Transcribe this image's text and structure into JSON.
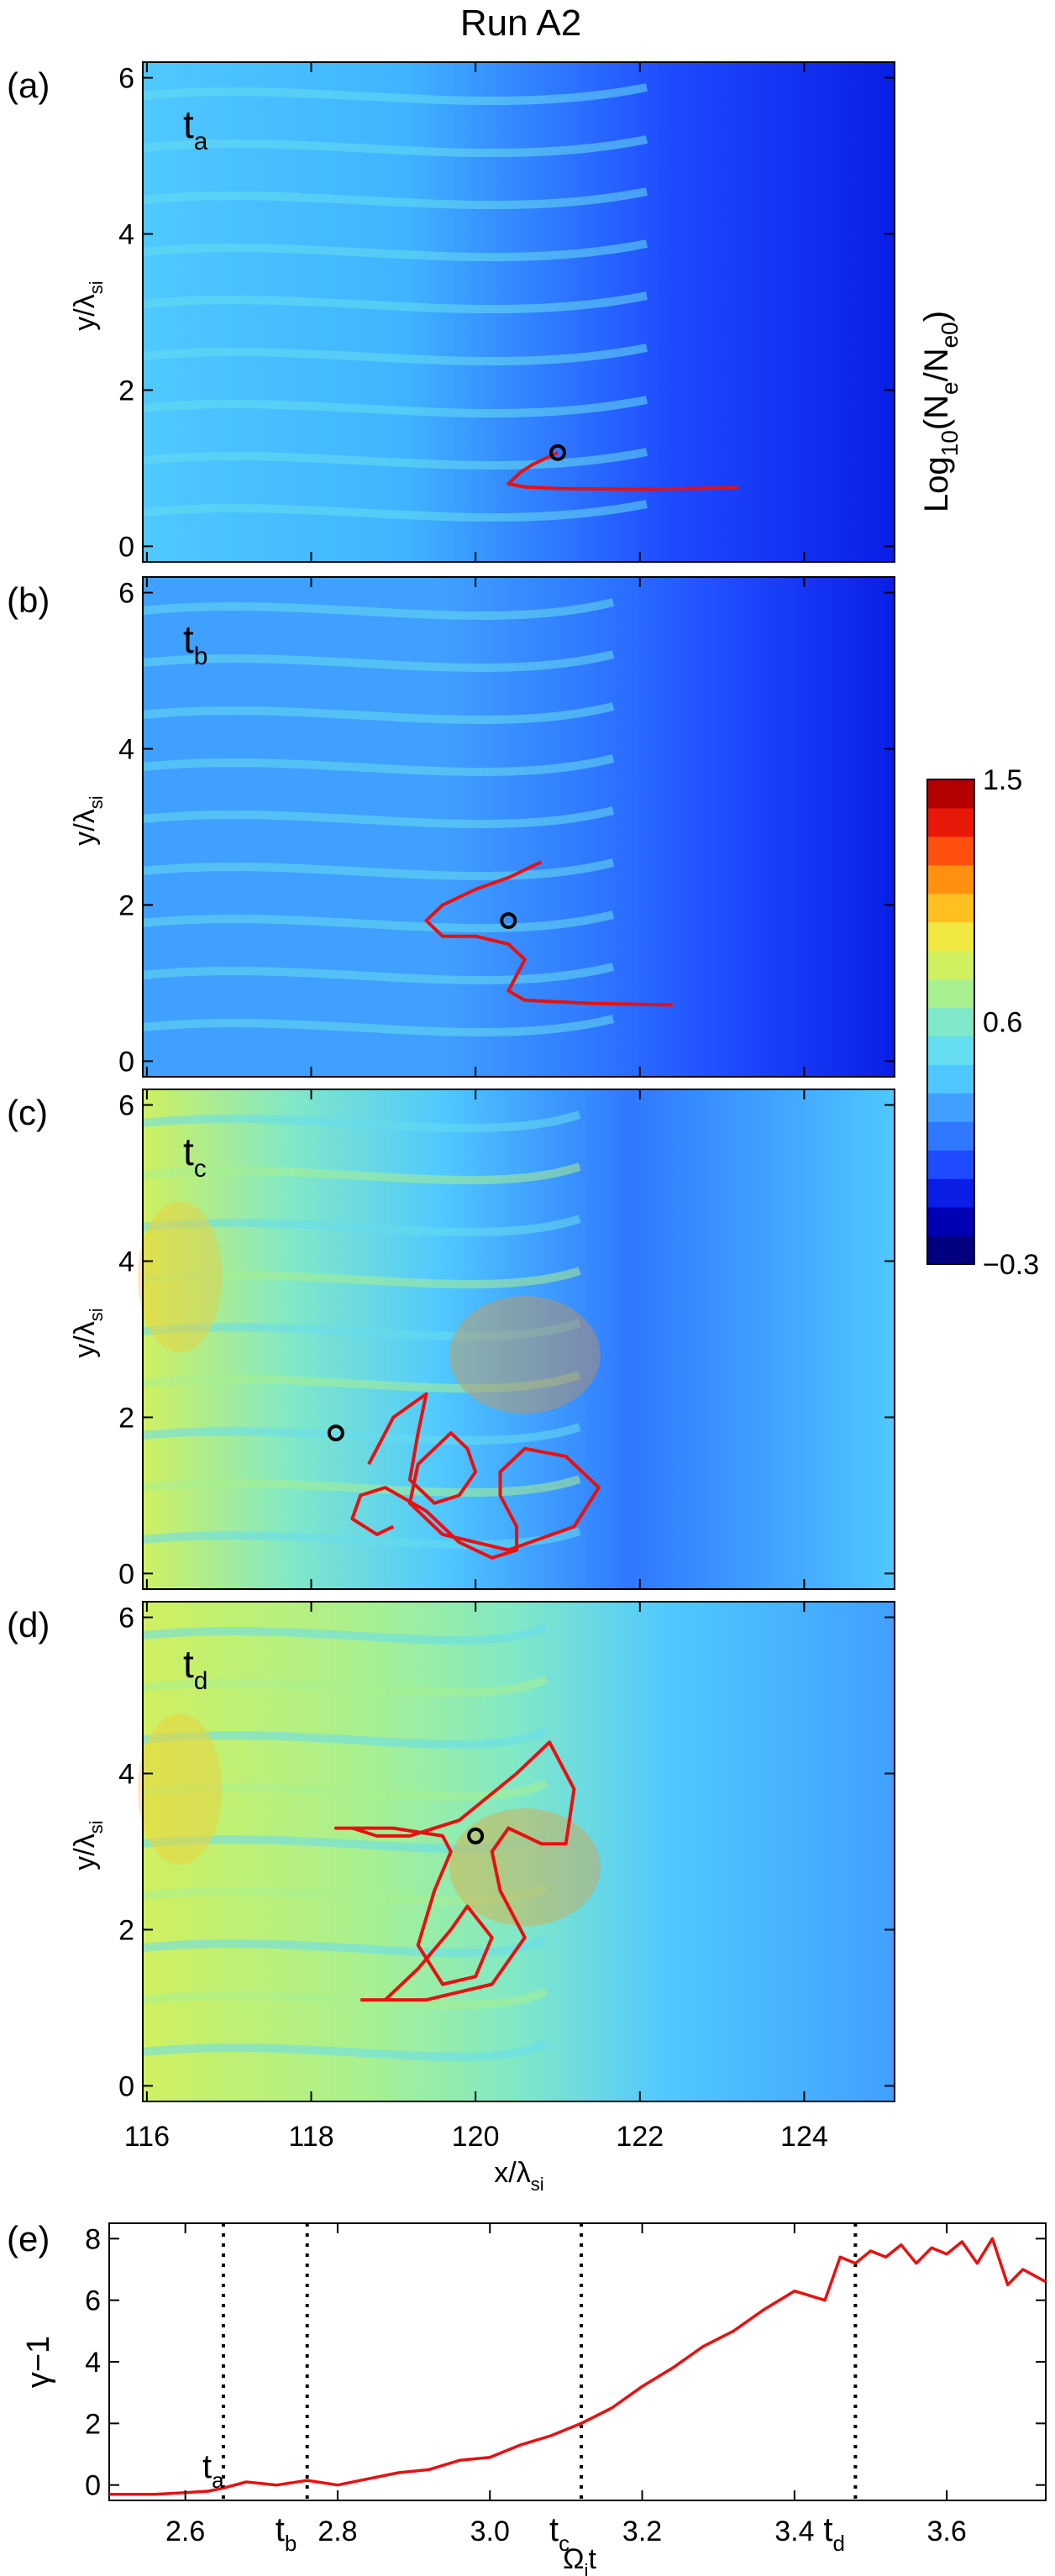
{
  "title": "Run A2",
  "colormap": {
    "label": "Log10(Ne/Ne0)",
    "label_parts": {
      "pre": "Log",
      "sub1": "10",
      "mid": "(N",
      "sub2": "e",
      "mid2": "/N",
      "sub3": "e0",
      "post": ")"
    },
    "min": -0.3,
    "max": 1.5,
    "tick_labels": [
      "1.5",
      "0.6",
      "−0.3"
    ],
    "tick_values": [
      1.5,
      0.6,
      -0.3
    ],
    "colors": [
      "#000080",
      "#0000b4",
      "#0a1ee6",
      "#1e4bff",
      "#2f78ff",
      "#40a0ff",
      "#50c8ff",
      "#66ddf0",
      "#80e8c8",
      "#a8f090",
      "#d0f060",
      "#f0e840",
      "#ffc020",
      "#ff9010",
      "#ff5010",
      "#e81808",
      "#b40000"
    ]
  },
  "panels": [
    {
      "id": "a",
      "letter": "(a)",
      "time": "t",
      "time_sub": "a",
      "ylabel": "y/λ",
      "ylabel_sub": "si",
      "yticks": [
        "0",
        "2",
        "4",
        "6"
      ]
    },
    {
      "id": "b",
      "letter": "(b)",
      "time": "t",
      "time_sub": "b",
      "ylabel": "y/λ",
      "ylabel_sub": "si",
      "yticks": [
        "0",
        "2",
        "4",
        "6"
      ]
    },
    {
      "id": "c",
      "letter": "(c)",
      "time": "t",
      "time_sub": "c",
      "ylabel": "y/λ",
      "ylabel_sub": "si",
      "yticks": [
        "0",
        "2",
        "4",
        "6"
      ]
    },
    {
      "id": "d",
      "letter": "(d)",
      "time": "t",
      "time_sub": "d",
      "ylabel": "y/λ",
      "ylabel_sub": "si",
      "yticks": [
        "0",
        "2",
        "4",
        "6"
      ]
    }
  ],
  "map_axes": {
    "xlabel": "x/λ",
    "xlabel_sub": "si",
    "xticks": [
      "116",
      "118",
      "120",
      "122",
      "124"
    ],
    "xlim": [
      115.95,
      125.1
    ],
    "ylim": [
      -0.2,
      6.2
    ]
  },
  "chart_data": [
    {
      "type": "heatmap",
      "panel": "a",
      "description_values": "electron density map",
      "xlim": [
        115.95,
        125.1
      ],
      "ylim": [
        -0.2,
        6.2
      ],
      "trajectory": {
        "x": [
          123.2,
          122.0,
          121.0,
          120.6,
          120.4,
          120.55,
          120.7,
          120.9,
          121.0
        ],
        "y": [
          0.75,
          0.73,
          0.74,
          0.76,
          0.8,
          0.95,
          1.05,
          1.15,
          1.2
        ]
      },
      "marker": {
        "x": 121.0,
        "y": 1.2
      }
    },
    {
      "type": "heatmap",
      "panel": "b",
      "xlim": [
        115.95,
        125.1
      ],
      "ylim": [
        -0.2,
        6.2
      ],
      "trajectory": {
        "x": [
          122.4,
          121.4,
          120.6,
          120.4,
          120.5,
          120.6,
          120.4,
          120.0,
          119.6,
          119.4,
          119.6,
          120.0,
          120.4,
          120.8
        ],
        "y": [
          0.72,
          0.74,
          0.78,
          0.9,
          1.1,
          1.3,
          1.5,
          1.6,
          1.6,
          1.8,
          2.0,
          2.2,
          2.35,
          2.55
        ]
      },
      "marker": {
        "x": 120.4,
        "y": 1.8
      }
    },
    {
      "type": "heatmap",
      "panel": "c",
      "xlim": [
        115.95,
        125.1
      ],
      "ylim": [
        -0.2,
        6.2
      ],
      "trajectory": {
        "x": [
          118.7,
          119.0,
          119.4,
          119.3,
          119.2,
          119.5,
          119.8,
          120.0,
          119.9,
          119.7,
          119.3,
          119.2,
          119.6,
          120.4,
          121.2,
          121.5,
          121.1,
          120.6,
          120.3,
          120.3,
          120.5,
          120.5,
          120.2,
          119.8,
          119.4,
          118.9,
          118.6,
          118.5,
          118.8,
          119.0
        ],
        "y": [
          1.4,
          2.0,
          2.3,
          1.8,
          1.2,
          0.9,
          1.0,
          1.3,
          1.6,
          1.8,
          1.4,
          0.9,
          0.5,
          0.3,
          0.6,
          1.1,
          1.5,
          1.6,
          1.3,
          1.0,
          0.6,
          0.3,
          0.2,
          0.4,
          0.8,
          1.1,
          1.0,
          0.7,
          0.5,
          0.6
        ]
      },
      "marker": {
        "x": 118.3,
        "y": 1.8
      }
    },
    {
      "type": "heatmap",
      "panel": "d",
      "xlim": [
        115.95,
        125.1
      ],
      "ylim": [
        -0.2,
        6.2
      ],
      "trajectory": {
        "x": [
          118.6,
          119.4,
          120.2,
          120.6,
          120.3,
          120.2,
          120.4,
          120.8,
          121.1,
          121.2,
          120.9,
          120.5,
          119.8,
          119.2,
          118.8,
          118.5,
          118.3,
          119.0,
          119.6,
          119.7,
          119.5,
          119.3,
          119.6,
          120.0,
          120.2,
          119.9,
          119.7,
          119.3,
          118.9,
          118.6
        ],
        "y": [
          1.1,
          1.1,
          1.3,
          1.9,
          2.5,
          3.0,
          3.3,
          3.1,
          3.1,
          3.8,
          4.4,
          4.0,
          3.4,
          3.2,
          3.2,
          3.3,
          3.3,
          3.3,
          3.2,
          3.0,
          2.5,
          1.8,
          1.3,
          1.4,
          1.9,
          2.3,
          2.0,
          1.5,
          1.1,
          1.1
        ]
      },
      "marker": {
        "x": 120.0,
        "y": 3.2
      }
    },
    {
      "type": "line",
      "panel": "e",
      "letter": "(e)",
      "xlabel": "Ω",
      "xlabel_sub": "i",
      "xlabel_post": "t",
      "ylabel": "γ−1",
      "xlim": [
        2.5,
        3.73
      ],
      "ylim": [
        -0.5,
        8.5
      ],
      "xticks": [
        "2.6",
        "2.8",
        "3.0",
        "3.2",
        "3.4",
        "3.6"
      ],
      "yticks": [
        "0",
        "2",
        "4",
        "6",
        "8"
      ],
      "series": [
        {
          "x": [
            2.5,
            2.56,
            2.6,
            2.63,
            2.65,
            2.68,
            2.72,
            2.76,
            2.8,
            2.84,
            2.88,
            2.92,
            2.96,
            3.0,
            3.04,
            3.08,
            3.12,
            3.16,
            3.2,
            3.24,
            3.28,
            3.32,
            3.36,
            3.4,
            3.44,
            3.46,
            3.48,
            3.5,
            3.52,
            3.54,
            3.56,
            3.58,
            3.6,
            3.62,
            3.64,
            3.66,
            3.68,
            3.7,
            3.73
          ],
          "y": [
            -0.3,
            -0.3,
            -0.25,
            -0.2,
            -0.1,
            0.1,
            0.0,
            0.15,
            0.0,
            0.2,
            0.4,
            0.5,
            0.8,
            0.9,
            1.3,
            1.6,
            2.0,
            2.5,
            3.2,
            3.8,
            4.5,
            5.0,
            5.7,
            6.3,
            6.0,
            7.4,
            7.2,
            7.6,
            7.4,
            7.8,
            7.2,
            7.7,
            7.5,
            7.9,
            7.2,
            8.0,
            6.5,
            7.0,
            6.6
          ]
        }
      ],
      "markers": [
        {
          "label": "t",
          "sub": "a",
          "x": 2.65
        },
        {
          "label": "t",
          "sub": "b",
          "x": 2.76
        },
        {
          "label": "t",
          "sub": "c",
          "x": 3.12
        },
        {
          "label": "t",
          "sub": "d",
          "x": 3.48
        }
      ]
    }
  ]
}
